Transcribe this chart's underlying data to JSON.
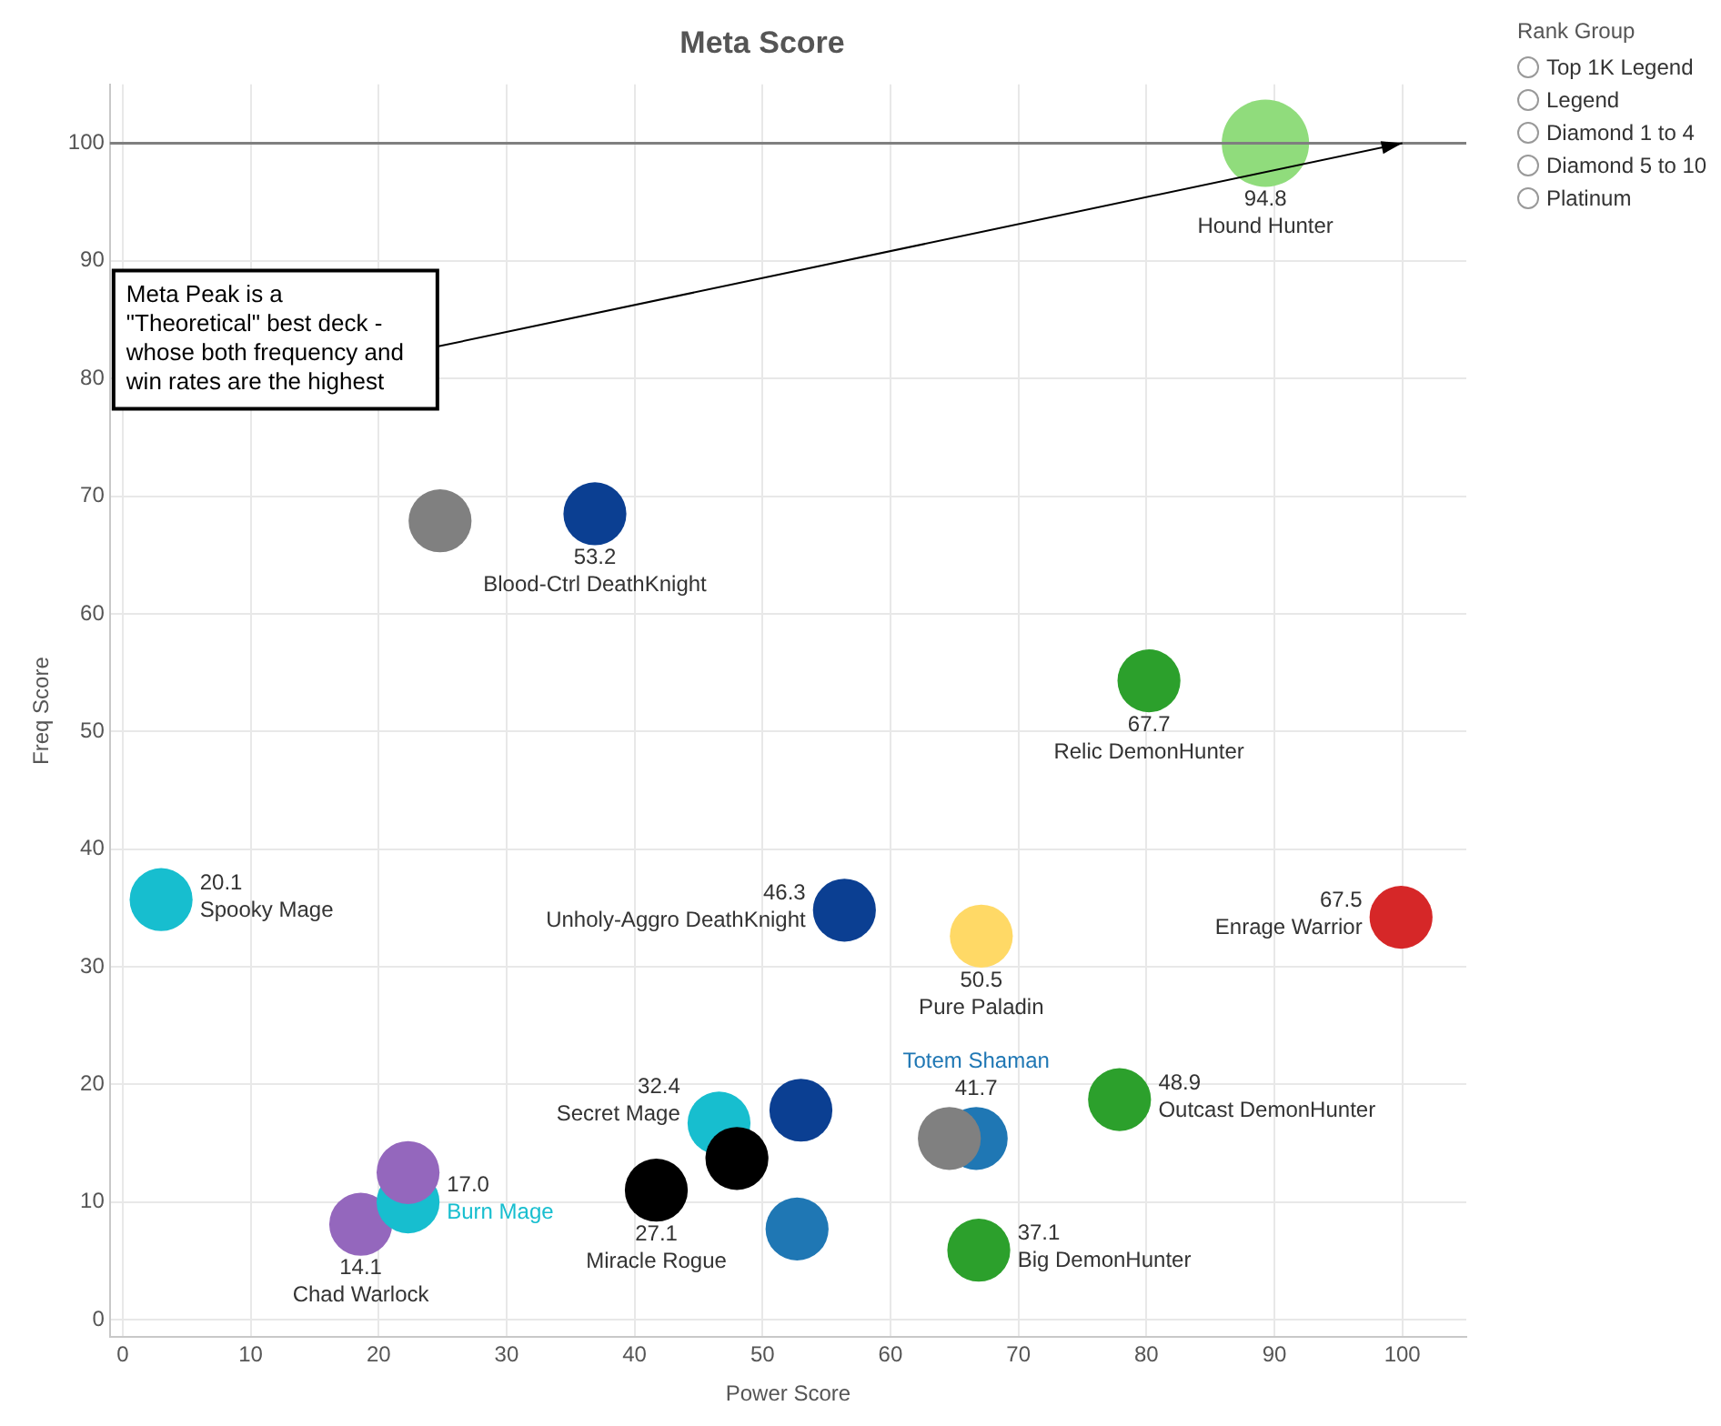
{
  "chart_data": {
    "type": "bubble",
    "title": "Meta Score",
    "xlabel": "Power Score",
    "ylabel": "Freq Score",
    "legend_title": "Rank Group",
    "xlim": [
      -1,
      105
    ],
    "ylim": [
      -1.5,
      105
    ],
    "xticks": [
      0,
      10,
      20,
      30,
      40,
      50,
      60,
      70,
      80,
      90,
      100
    ],
    "yticks": [
      0,
      10,
      20,
      30,
      40,
      50,
      60,
      70,
      80,
      90,
      100
    ],
    "grid": true,
    "legend": false,
    "ref_lines": [
      {
        "axis": "y",
        "value": 100,
        "color": "#7f7f7f"
      }
    ],
    "annotations": [
      "Meta Peak is a \"Theoretical\" best deck - whose both frequency and win rates are the highest",
      "Top 1K Legend",
      "Legend",
      "Diamond 1 to 4",
      "Diamond 5 to 10",
      "Platinum",
      {
        "text": "94.8",
        "x": 89.3,
        "y": 100
      },
      {
        "text": "53.2",
        "x": 36.9,
        "y": 68.5
      },
      {
        "text": "67.7",
        "x": 80.2,
        "y": 54.3
      },
      {
        "text": "20.1",
        "x": 3.0,
        "y": 35.7
      },
      {
        "text": "46.3",
        "x": 56.4,
        "y": 34.8
      },
      {
        "text": "50.5",
        "x": 67.1,
        "y": 32.6
      },
      {
        "text": "67.5",
        "x": 99.9,
        "y": 34.2
      },
      {
        "text": "41.7",
        "x": 66.7,
        "y": 15.4
      },
      {
        "text": "48.9",
        "x": 77.9,
        "y": 18.7
      },
      {
        "text": "32.4",
        "x": 46.6,
        "y": 16.7
      },
      {
        "text": "27.1",
        "x": 41.7,
        "y": 11.0
      },
      {
        "text": "37.1",
        "x": 66.9,
        "y": 5.9
      },
      {
        "text": "17.0",
        "x": 22.3,
        "y": 10.0
      },
      {
        "text": "14.1",
        "x": 18.6,
        "y": 8.1
      }
    ],
    "series": [
      {
        "name": "Hound Hunter",
        "color": "#90dc7c",
        "x": [
          89.3
        ],
        "values": [
          100
        ],
        "sizes": [
          1
        ]
      },
      {
        "color": "#808080",
        "x": [
          24.8
        ],
        "values": [
          67.9
        ],
        "sizes": [
          0.52
        ]
      },
      {
        "name": "Blood-Ctrl DeathKnight",
        "color": "#0b3f92",
        "x": [
          36.9
        ],
        "values": [
          68.5
        ],
        "sizes": [
          0.52
        ]
      },
      {
        "name": "Relic DemonHunter",
        "color": "#2ca02c",
        "x": [
          80.2
        ],
        "values": [
          54.3
        ],
        "sizes": [
          0.52
        ]
      },
      {
        "name": "Spooky Mage",
        "color": "#17becf",
        "x": [
          3.0
        ],
        "values": [
          35.7
        ],
        "sizes": [
          0.52
        ]
      },
      {
        "name": "Unholy-Aggro DeathKnight",
        "color": "#0b3f92",
        "x": [
          56.4
        ],
        "values": [
          34.8
        ],
        "sizes": [
          0.52
        ]
      },
      {
        "name": "Pure Paladin",
        "color": "#ffd966",
        "x": [
          67.1
        ],
        "values": [
          32.6
        ],
        "sizes": [
          0.52
        ]
      },
      {
        "name": "Enrage Warrior",
        "color": "#d62728",
        "x": [
          99.9
        ],
        "values": [
          34.2
        ],
        "sizes": [
          0.52
        ]
      },
      {
        "color": "#808080",
        "x": [
          64.6
        ],
        "values": [
          15.4
        ],
        "sizes": [
          0.52
        ]
      },
      {
        "name": "Totem Shaman",
        "color": "#1f77b4",
        "x": [
          66.7
        ],
        "values": [
          15.4
        ],
        "sizes": [
          0.52
        ]
      },
      {
        "name": "Outcast DemonHunter",
        "color": "#2ca02c",
        "x": [
          77.9
        ],
        "values": [
          18.7
        ],
        "sizes": [
          0.52
        ]
      },
      {
        "color": "#0b3f92",
        "x": [
          53.0
        ],
        "values": [
          17.8
        ],
        "sizes": [
          0.52
        ]
      },
      {
        "color": "#000000",
        "x": [
          48.0
        ],
        "values": [
          13.7
        ],
        "sizes": [
          0.52
        ]
      },
      {
        "name": "Secret Mage",
        "color": "#17becf",
        "x": [
          46.6
        ],
        "values": [
          16.7
        ],
        "sizes": [
          0.52
        ]
      },
      {
        "name": "Miracle Rogue",
        "color": "#000000",
        "x": [
          41.7
        ],
        "values": [
          11.0
        ],
        "sizes": [
          0.52
        ]
      },
      {
        "color": "#1f77b4",
        "x": [
          52.7
        ],
        "values": [
          7.7
        ],
        "sizes": [
          0.52
        ]
      },
      {
        "name": "Big DemonHunter",
        "color": "#2ca02c",
        "x": [
          66.9
        ],
        "values": [
          5.9
        ],
        "sizes": [
          0.52
        ]
      },
      {
        "color": "#9467bd",
        "x": [
          22.3
        ],
        "values": [
          12.5
        ],
        "sizes": [
          0.52
        ]
      },
      {
        "name": "Burn Mage",
        "color": "#17becf",
        "x": [
          22.3
        ],
        "values": [
          10.0
        ],
        "sizes": [
          0.52
        ]
      },
      {
        "name": "Chad Warlock",
        "color": "#9467bd",
        "x": [
          18.6
        ],
        "values": [
          8.1
        ],
        "sizes": [
          0.52
        ]
      }
    ]
  }
}
